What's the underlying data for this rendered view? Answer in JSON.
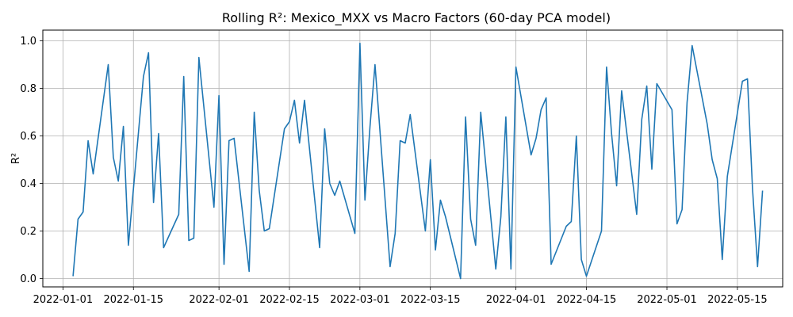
{
  "chart_data": {
    "type": "line",
    "title": "Rolling R²: Mexico_MXX vs Macro Factors (60-day PCA model)",
    "xlabel": "",
    "ylabel": "R²",
    "grid": true,
    "legend": "none",
    "ylim": [
      -0.035,
      1.045
    ],
    "xlim": [
      "2021-12-28",
      "2022-05-24"
    ],
    "x_ticks": [
      "2022-01-01",
      "2022-01-15",
      "2022-02-01",
      "2022-02-15",
      "2022-03-01",
      "2022-03-15",
      "2022-04-01",
      "2022-04-15",
      "2022-05-01",
      "2022-05-15"
    ],
    "y_ticks": [
      "0.0",
      "0.2",
      "0.4",
      "0.6",
      "0.8",
      "1.0"
    ],
    "series": [
      {
        "color": "#1f77b4",
        "x": [
          "2022-01-03",
          "2022-01-04",
          "2022-01-05",
          "2022-01-06",
          "2022-01-07",
          "2022-01-10",
          "2022-01-11",
          "2022-01-12",
          "2022-01-13",
          "2022-01-14",
          "2022-01-17",
          "2022-01-18",
          "2022-01-19",
          "2022-01-20",
          "2022-01-21",
          "2022-01-24",
          "2022-01-25",
          "2022-01-26",
          "2022-01-27",
          "2022-01-28",
          "2022-01-31",
          "2022-02-01",
          "2022-02-02",
          "2022-02-03",
          "2022-02-04",
          "2022-02-07",
          "2022-02-08",
          "2022-02-09",
          "2022-02-10",
          "2022-02-11",
          "2022-02-14",
          "2022-02-15",
          "2022-02-16",
          "2022-02-17",
          "2022-02-18",
          "2022-02-21",
          "2022-02-22",
          "2022-02-23",
          "2022-02-24",
          "2022-02-25",
          "2022-02-28",
          "2022-03-01",
          "2022-03-02",
          "2022-03-03",
          "2022-03-04",
          "2022-03-07",
          "2022-03-08",
          "2022-03-09",
          "2022-03-10",
          "2022-03-11",
          "2022-03-14",
          "2022-03-15",
          "2022-03-16",
          "2022-03-17",
          "2022-03-18",
          "2022-03-21",
          "2022-03-22",
          "2022-03-23",
          "2022-03-24",
          "2022-03-25",
          "2022-03-28",
          "2022-03-29",
          "2022-03-30",
          "2022-03-31",
          "2022-04-01",
          "2022-04-04",
          "2022-04-05",
          "2022-04-06",
          "2022-04-07",
          "2022-04-08",
          "2022-04-11",
          "2022-04-12",
          "2022-04-13",
          "2022-04-14",
          "2022-04-15",
          "2022-04-18",
          "2022-04-19",
          "2022-04-20",
          "2022-04-21",
          "2022-04-22",
          "2022-04-25",
          "2022-04-26",
          "2022-04-27",
          "2022-04-28",
          "2022-04-29",
          "2022-05-02",
          "2022-05-03",
          "2022-05-04",
          "2022-05-05",
          "2022-05-06",
          "2022-05-09",
          "2022-05-10",
          "2022-05-11",
          "2022-05-12",
          "2022-05-13",
          "2022-05-16",
          "2022-05-17",
          "2022-05-18",
          "2022-05-19",
          "2022-05-20"
        ],
        "y": [
          0.01,
          0.25,
          0.28,
          0.58,
          0.44,
          0.9,
          0.51,
          0.41,
          0.64,
          0.14,
          0.85,
          0.95,
          0.32,
          0.61,
          0.13,
          0.27,
          0.85,
          0.16,
          0.17,
          0.93,
          0.3,
          0.77,
          0.06,
          0.58,
          0.59,
          0.03,
          0.7,
          0.37,
          0.2,
          0.21,
          0.63,
          0.66,
          0.75,
          0.57,
          0.75,
          0.13,
          0.63,
          0.4,
          0.35,
          0.41,
          0.19,
          0.99,
          0.33,
          0.64,
          0.9,
          0.05,
          0.19,
          0.58,
          0.57,
          0.69,
          0.2,
          0.5,
          0.12,
          0.33,
          0.26,
          0.0,
          0.68,
          0.25,
          0.14,
          0.7,
          0.04,
          0.26,
          0.68,
          0.04,
          0.89,
          0.52,
          0.59,
          0.71,
          0.76,
          0.06,
          0.22,
          0.24,
          0.6,
          0.08,
          0.01,
          0.2,
          0.89,
          0.61,
          0.39,
          0.79,
          0.27,
          0.67,
          0.81,
          0.46,
          0.82,
          0.71,
          0.23,
          0.29,
          0.74,
          0.98,
          0.65,
          0.5,
          0.42,
          0.08,
          0.43,
          0.83,
          0.84,
          0.38,
          0.05,
          0.37
        ]
      }
    ]
  }
}
